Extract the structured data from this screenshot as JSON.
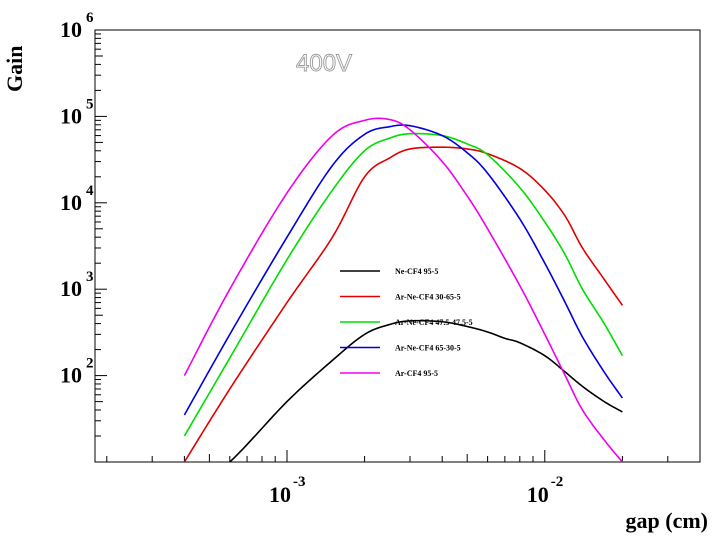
{
  "chart_data": {
    "type": "line",
    "xlabel": "gap (cm)",
    "ylabel": "Gain",
    "x_scale": "log",
    "y_scale": "log",
    "xlim": [
      0.00018,
      0.04
    ],
    "ylim": [
      10,
      1000000
    ],
    "grid": false,
    "legend_position": "center",
    "annotation": "400V",
    "x_ticks": [
      {
        "value": 0.001,
        "base": "10",
        "exp": "-3"
      },
      {
        "value": 0.01,
        "base": "10",
        "exp": "-2"
      }
    ],
    "y_ticks": [
      {
        "value": 100,
        "base": "10",
        "exp": "2"
      },
      {
        "value": 1000,
        "base": "10",
        "exp": "3"
      },
      {
        "value": 10000,
        "base": "10",
        "exp": "4"
      },
      {
        "value": 100000,
        "base": "10",
        "exp": "5"
      },
      {
        "value": 1000000,
        "base": "10",
        "exp": "6"
      }
    ],
    "series": [
      {
        "name": "Ne-CF4 95-5",
        "color": "#000000",
        "x": [
          0.0004,
          0.0006,
          0.001,
          0.0015,
          0.002,
          0.0025,
          0.003,
          0.004,
          0.005,
          0.006,
          0.007,
          0.008,
          0.01,
          0.012,
          0.014,
          0.017,
          0.02
        ],
        "y": [
          4,
          10,
          50,
          150,
          300,
          390,
          430,
          420,
          370,
          320,
          270,
          240,
          170,
          110,
          75,
          50,
          38
        ]
      },
      {
        "name": "Ar-Ne-CF4 30-65-5",
        "color": "#e00000",
        "x": [
          0.0004,
          0.0006,
          0.001,
          0.0015,
          0.002,
          0.0025,
          0.003,
          0.004,
          0.005,
          0.006,
          0.008,
          0.01,
          0.012,
          0.014,
          0.017,
          0.02
        ],
        "y": [
          10,
          70,
          700,
          4000,
          20000,
          33000,
          42000,
          44000,
          42000,
          37000,
          25000,
          14000,
          7000,
          3000,
          1300,
          650
        ]
      },
      {
        "name": "Ar-Ne-CF4 47.5-47.5-5",
        "color": "#00dd00",
        "x": [
          0.0004,
          0.0006,
          0.001,
          0.0015,
          0.002,
          0.0025,
          0.003,
          0.004,
          0.005,
          0.006,
          0.008,
          0.01,
          0.012,
          0.014,
          0.017,
          0.02
        ],
        "y": [
          20,
          160,
          2200,
          14000,
          40000,
          56000,
          63000,
          60000,
          48000,
          36000,
          15000,
          6000,
          2500,
          1000,
          400,
          170
        ]
      },
      {
        "name": "Ar-Ne-CF4 65-30-5",
        "color": "#0000dd",
        "x": [
          0.0004,
          0.0006,
          0.001,
          0.0015,
          0.002,
          0.0025,
          0.003,
          0.004,
          0.005,
          0.006,
          0.008,
          0.01,
          0.012,
          0.014,
          0.017,
          0.02
        ],
        "y": [
          35,
          300,
          4000,
          27000,
          62000,
          76000,
          78000,
          60000,
          38000,
          22000,
          6500,
          2000,
          700,
          280,
          110,
          55
        ]
      },
      {
        "name": "Ar-CF4 95-5",
        "color": "#ee00ee",
        "x": [
          0.0004,
          0.0006,
          0.001,
          0.0015,
          0.002,
          0.0025,
          0.003,
          0.004,
          0.005,
          0.006,
          0.008,
          0.01,
          0.012,
          0.014,
          0.017,
          0.02
        ],
        "y": [
          100,
          1000,
          13000,
          60000,
          90000,
          92000,
          70000,
          30000,
          12000,
          5000,
          1100,
          300,
          100,
          40,
          18,
          10
        ]
      }
    ]
  }
}
